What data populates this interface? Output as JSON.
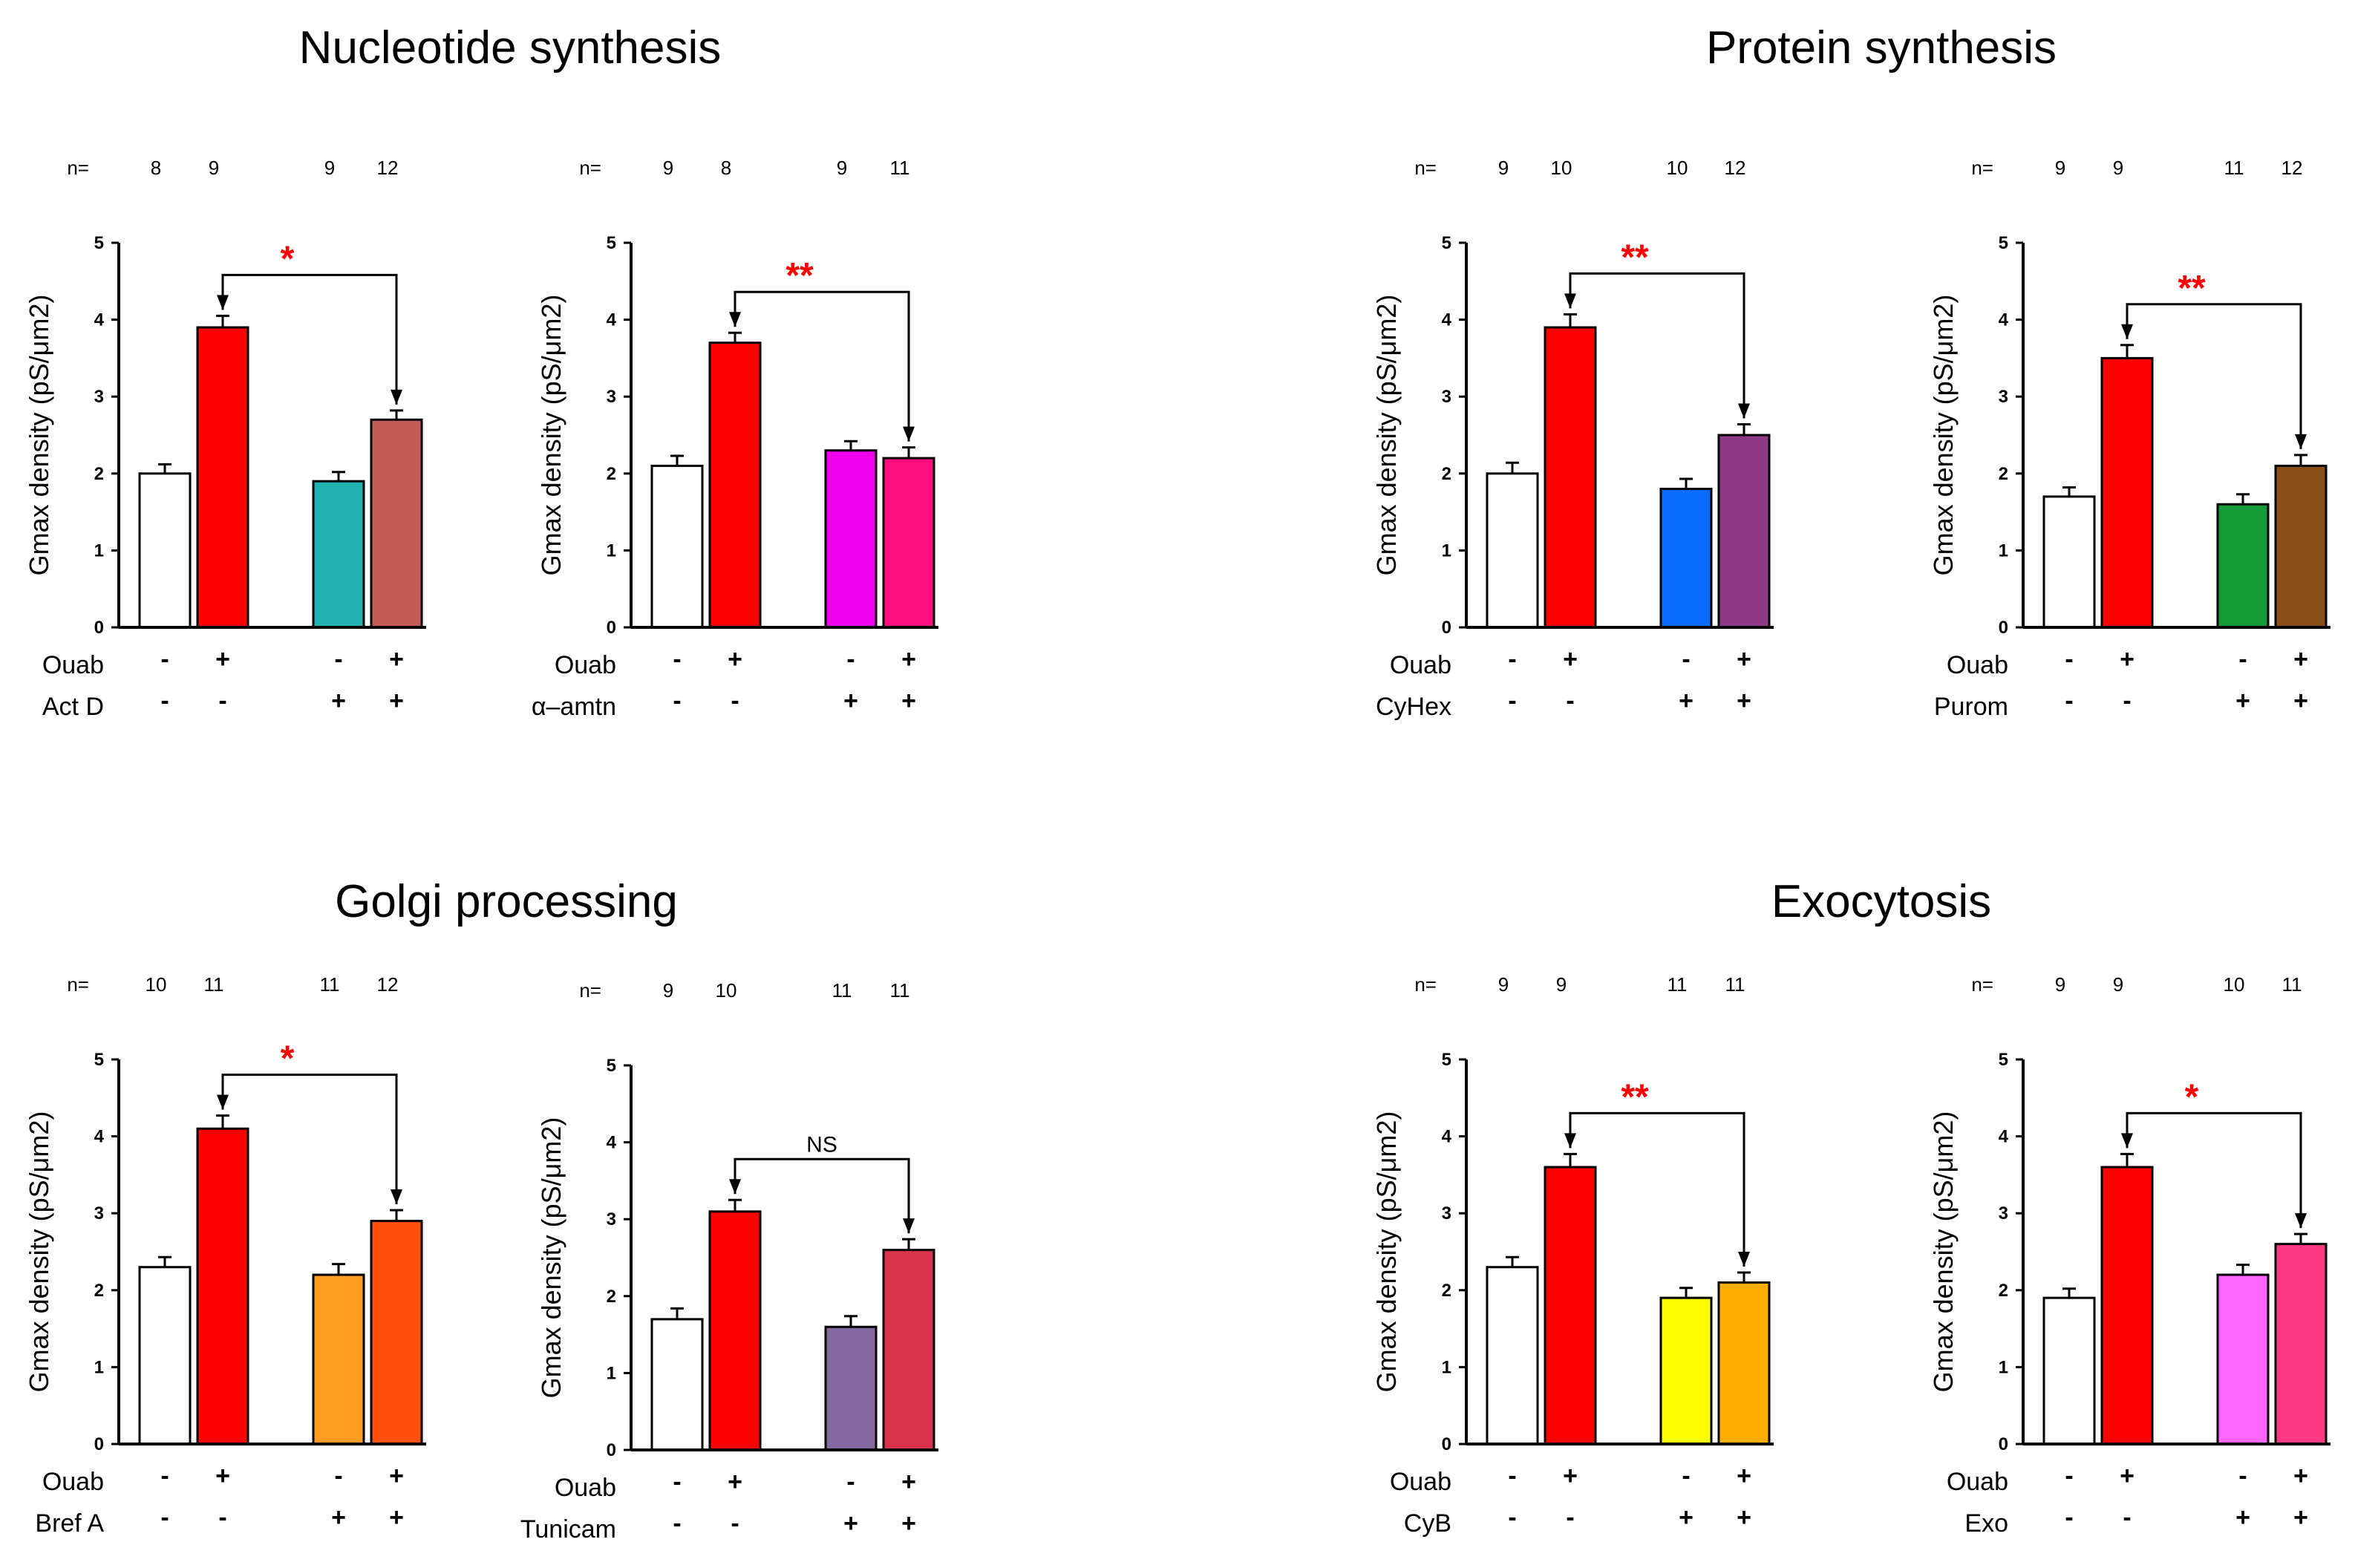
{
  "figure": {
    "section_titles": [
      "Nucleotide synthesis",
      "Protein synthesis",
      "Golgi processing",
      "Exocytosis"
    ],
    "y_label": "Gmax density  (pS/μm2)",
    "n_prefix": "n=",
    "ouab_label": "Ouab",
    "ouab_signs": [
      "-",
      "+",
      "-",
      "+"
    ],
    "drug_signs": [
      "-",
      "-",
      "+",
      "+"
    ]
  },
  "chart_data": [
    {
      "type": "bar",
      "panel": "Act D",
      "section": "Nucleotide synthesis",
      "n": [
        "8",
        "9",
        "9",
        "12"
      ],
      "values": [
        2.0,
        3.9,
        1.9,
        2.7
      ],
      "errors": [
        0.12,
        0.15,
        0.12,
        0.12
      ],
      "colors": [
        "#ffffff",
        "#ff0000",
        "#22b2b0",
        "#c45c5a"
      ],
      "ylim": [
        0,
        5
      ],
      "yticks": [
        "0",
        "1",
        "2",
        "3",
        "4",
        "5"
      ],
      "ylabel": "Gmax density  (pS/μm2)",
      "ouab_label": "Ouab",
      "drug_label": "Act D",
      "significance": "*",
      "sig_color": "#ff0000"
    },
    {
      "type": "bar",
      "panel": "α–amtn",
      "section": "Nucleotide synthesis",
      "n": [
        "9",
        "8",
        "9",
        "11"
      ],
      "values": [
        2.1,
        3.7,
        2.3,
        2.2
      ],
      "errors": [
        0.13,
        0.13,
        0.12,
        0.14
      ],
      "colors": [
        "#ffffff",
        "#ff0000",
        "#ee00ee",
        "#ff0f7b"
      ],
      "ylim": [
        0,
        5
      ],
      "yticks": [
        "0",
        "1",
        "2",
        "3",
        "4",
        "5"
      ],
      "ylabel": "Gmax density  (pS/μm2)",
      "ouab_label": "Ouab",
      "drug_label": "α–amtn",
      "significance": "**",
      "sig_color": "#ff0000"
    },
    {
      "type": "bar",
      "panel": "CyHex",
      "section": "Protein synthesis",
      "n": [
        "9",
        "10",
        "10",
        "12"
      ],
      "values": [
        2.0,
        3.9,
        1.8,
        2.5
      ],
      "errors": [
        0.14,
        0.17,
        0.13,
        0.14
      ],
      "colors": [
        "#ffffff",
        "#ff0000",
        "#0a6cff",
        "#8c3a86"
      ],
      "ylim": [
        0,
        5
      ],
      "yticks": [
        "0",
        "1",
        "2",
        "3",
        "4",
        "5"
      ],
      "ylabel": "Gmax density  (pS/μm2)",
      "ouab_label": "Ouab",
      "drug_label": "CyHex",
      "significance": "**",
      "sig_color": "#ff0000"
    },
    {
      "type": "bar",
      "panel": "Purom",
      "section": "Protein synthesis",
      "n": [
        "9",
        "9",
        "11",
        "12"
      ],
      "values": [
        1.7,
        3.5,
        1.6,
        2.1
      ],
      "errors": [
        0.12,
        0.17,
        0.13,
        0.14
      ],
      "colors": [
        "#ffffff",
        "#ff0000",
        "#159a38",
        "#8a4f16"
      ],
      "ylim": [
        0,
        5
      ],
      "yticks": [
        "0",
        "1",
        "2",
        "3",
        "4",
        "5"
      ],
      "ylabel": "Gmax density  (pS/μm2)",
      "ouab_label": "Ouab",
      "drug_label": "Purom",
      "significance": "**",
      "sig_color": "#ff0000"
    },
    {
      "type": "bar",
      "panel": "Bref A",
      "section": "Golgi processing",
      "n": [
        "10",
        "11",
        "11",
        "12"
      ],
      "values": [
        2.3,
        4.1,
        2.2,
        2.9
      ],
      "errors": [
        0.13,
        0.17,
        0.14,
        0.14
      ],
      "colors": [
        "#ffffff",
        "#ff0000",
        "#ff9e22",
        "#ff500d"
      ],
      "ylim": [
        0,
        5
      ],
      "yticks": [
        "0",
        "1",
        "2",
        "3",
        "4",
        "5"
      ],
      "ylabel": "Gmax density  (pS/μm2)",
      "ouab_label": "Ouab",
      "drug_label": "Bref A",
      "significance": "*",
      "sig_color": "#ff0000"
    },
    {
      "type": "bar",
      "panel": "Tunicam",
      "section": "Golgi processing",
      "n": [
        "9",
        "10",
        "11",
        "11"
      ],
      "values": [
        1.7,
        3.1,
        1.6,
        2.6
      ],
      "errors": [
        0.14,
        0.15,
        0.14,
        0.14
      ],
      "colors": [
        "#ffffff",
        "#ff0000",
        "#85689f",
        "#d9344c"
      ],
      "ylim": [
        0,
        5
      ],
      "yticks": [
        "0",
        "1",
        "2",
        "3",
        "4",
        "5"
      ],
      "ylabel": "Gmax density  (pS/μm2)",
      "ouab_label": "Ouab",
      "drug_label": "Tunicam",
      "significance": "NS",
      "sig_color": "#000000"
    },
    {
      "type": "bar",
      "panel": "CyB",
      "section": "Exocytosis",
      "n": [
        "9",
        "9",
        "11",
        "11"
      ],
      "values": [
        2.3,
        3.6,
        1.9,
        2.1
      ],
      "errors": [
        0.13,
        0.17,
        0.13,
        0.13
      ],
      "colors": [
        "#ffffff",
        "#ff0000",
        "#ffff00",
        "#ffae00"
      ],
      "ylim": [
        0,
        5
      ],
      "yticks": [
        "0",
        "1",
        "2",
        "3",
        "4",
        "5"
      ],
      "ylabel": "Gmax density  (pS/μm2)",
      "ouab_label": "Ouab",
      "drug_label": "CyB",
      "significance": "**",
      "sig_color": "#ff0000"
    },
    {
      "type": "bar",
      "panel": "Exo",
      "section": "Exocytosis",
      "n": [
        "9",
        "9",
        "10",
        "11"
      ],
      "values": [
        1.9,
        3.6,
        2.2,
        2.6
      ],
      "errors": [
        0.12,
        0.17,
        0.13,
        0.13
      ],
      "colors": [
        "#ffffff",
        "#ff0000",
        "#ff66ff",
        "#ff3a84"
      ],
      "ylim": [
        0,
        5
      ],
      "yticks": [
        "0",
        "1",
        "2",
        "3",
        "4",
        "5"
      ],
      "ylabel": "Gmax density  (pS/μm2)",
      "ouab_label": "Ouab",
      "drug_label": "Exo",
      "significance": "*",
      "sig_color": "#ff0000"
    }
  ]
}
